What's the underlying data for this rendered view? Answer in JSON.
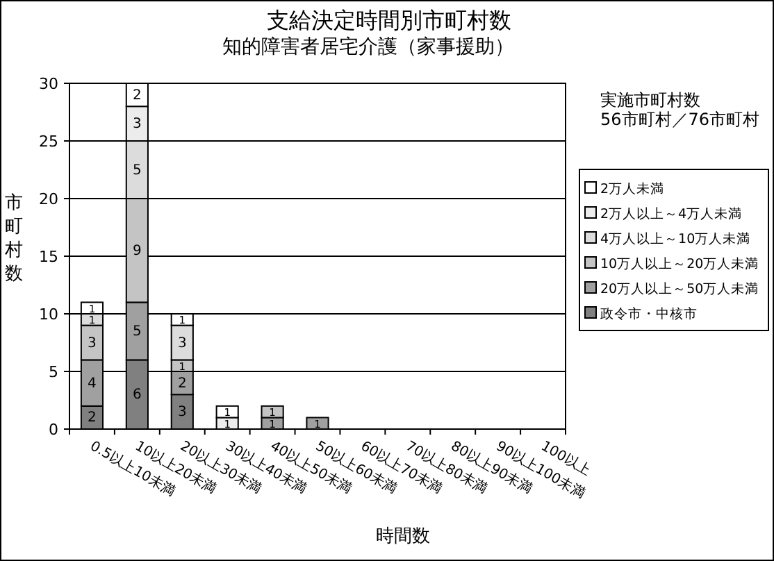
{
  "chart_data": {
    "type": "bar",
    "title": "支給決定時間別市町村数",
    "subtitle": "知的障害者居宅介護（家事援助）",
    "xlabel": "時間数",
    "ylabel": "市町村数",
    "annotations": [
      "実施市町村数",
      "56市町村／76市町村"
    ],
    "categories": [
      "0.5以上10未満",
      "10以上20未満",
      "20以上30未満",
      "30以上40未満",
      "40以上50未満",
      "50以上60未満",
      "60以上70未満",
      "70以上80未満",
      "80以上90未満",
      "90以上100未満",
      "100以上"
    ],
    "stacked": true,
    "ylim": [
      0,
      30
    ],
    "yticks": [
      0,
      5,
      10,
      15,
      20,
      25,
      30
    ],
    "grid": "y",
    "legend": "right",
    "data_labels": true,
    "series": [
      {
        "name": "政令市・中核市",
        "color": "#808080",
        "values": [
          2,
          6,
          3,
          null,
          null,
          null,
          null,
          null,
          null,
          null,
          null
        ]
      },
      {
        "name": "20万人以上～50万人未満",
        "color": "#a0a0a0",
        "values": [
          4,
          5,
          2,
          null,
          1,
          1,
          null,
          null,
          null,
          null,
          null
        ]
      },
      {
        "name": "10万人以上～20万人未満",
        "color": "#c4c4c4",
        "values": [
          3,
          9,
          1,
          null,
          1,
          null,
          null,
          null,
          null,
          null,
          null
        ]
      },
      {
        "name": "4万人以上～10万人未満",
        "color": "#dcdcdc",
        "values": [
          1,
          5,
          3,
          null,
          null,
          null,
          null,
          null,
          null,
          null,
          null
        ]
      },
      {
        "name": "2万人以上～4万人未満",
        "color": "#ececec",
        "values": [
          null,
          3,
          null,
          1,
          null,
          null,
          null,
          null,
          null,
          null,
          null
        ]
      },
      {
        "name": "2万人未満",
        "color": "#ffffff",
        "values": [
          1,
          2,
          1,
          1,
          null,
          null,
          null,
          null,
          null,
          null,
          null
        ]
      }
    ]
  }
}
